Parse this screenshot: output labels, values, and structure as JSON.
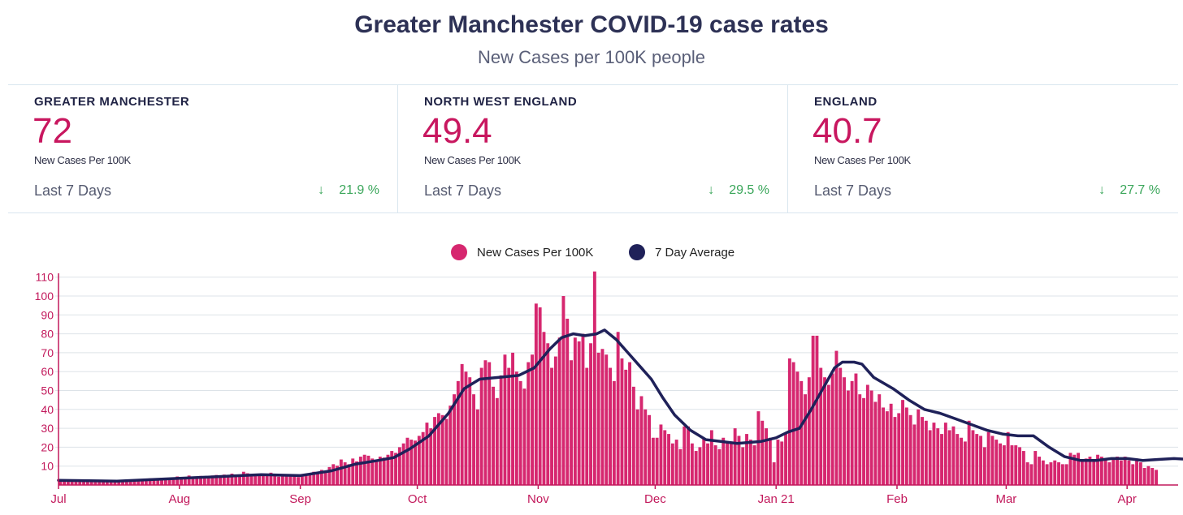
{
  "header": {
    "title": "Greater Manchester COVID-19 case rates",
    "subtitle": "New Cases per 100K people"
  },
  "stats": [
    {
      "region": "GREATER MANCHESTER",
      "value": "72",
      "unit": "New Cases Per 100K",
      "period": "Last 7 Days",
      "change": "21.9 %"
    },
    {
      "region": "NORTH WEST ENGLAND",
      "value": "49.4",
      "unit": "New Cases Per 100K",
      "period": "Last 7 Days",
      "change": "29.5 %"
    },
    {
      "region": "ENGLAND",
      "value": "40.7",
      "unit": "New Cases Per 100K",
      "period": "Last 7 Days",
      "change": "27.7 %"
    }
  ],
  "colors": {
    "bars": "#d6276f",
    "average": "#1f2159",
    "axis": "#c2185b",
    "grid": "#dde3e8",
    "down": "#3aa65a"
  },
  "chart_data": {
    "type": "bar",
    "legend": {
      "placement": "top-center",
      "items": [
        "New Cases Per 100K",
        "7 Day Average"
      ]
    },
    "x_labels": [
      "Jul",
      "Aug",
      "Sep",
      "Oct",
      "Nov",
      "Dec",
      "Jan 21",
      "Feb",
      "Mar",
      "Apr"
    ],
    "x_label_day_index": [
      0,
      31,
      62,
      92,
      123,
      153,
      184,
      215,
      243,
      274
    ],
    "y_ticks": [
      10,
      20,
      30,
      40,
      50,
      60,
      70,
      80,
      90,
      100,
      110
    ],
    "ylim": [
      0,
      112
    ],
    "grid": true,
    "series": [
      {
        "name": "New Cases Per 100K",
        "kind": "bar",
        "start": "2020-07-01",
        "step": "1 day",
        "values": [
          2.5,
          2.3,
          2.0,
          2.4,
          2.2,
          1.8,
          2.6,
          2.1,
          2.4,
          2.2,
          2.0,
          1.9,
          2.3,
          2.5,
          2.1,
          2.0,
          1.8,
          2.2,
          2.4,
          2.1,
          2.3,
          2.6,
          2.8,
          3.5,
          2.9,
          3.1,
          3.8,
          3.3,
          3.0,
          4.0,
          4.5,
          4.0,
          3.8,
          5.0,
          4.2,
          4.5,
          4.8,
          3.9,
          4.6,
          5.0,
          5.3,
          4.7,
          5.5,
          4.9,
          6.0,
          5.1,
          5.6,
          7.0,
          6.2,
          5.4,
          5.5,
          6.0,
          5.3,
          4.8,
          6.5,
          5.1,
          4.4,
          4.8,
          5.3,
          4.6,
          5.0,
          4.2,
          4.5,
          6.0,
          5.5,
          7.0,
          6.2,
          8.0,
          7.1,
          9.5,
          11.0,
          10.2,
          13.5,
          12.0,
          11.0,
          14.0,
          12.5,
          15.0,
          16.0,
          15.5,
          14.0,
          13.0,
          15.0,
          14.5,
          16.0,
          18.0,
          17.0,
          20.0,
          22.0,
          25.0,
          24.0,
          23.5,
          26.0,
          28.0,
          33.0,
          30.0,
          36.0,
          38.0,
          37.0,
          35.0,
          42.0,
          48.0,
          55.0,
          64.0,
          60.0,
          57.0,
          48.0,
          40.0,
          62.0,
          66.0,
          65.0,
          52.0,
          46.0,
          58.0,
          69.0,
          62.0,
          70.0,
          60.0,
          55.0,
          51.0,
          65.0,
          69.0,
          96.0,
          94.0,
          81.0,
          75.0,
          62.0,
          68.0,
          78.0,
          100.0,
          88.0,
          66.0,
          78.0,
          76.0,
          80.0,
          62.0,
          75.0,
          113.0,
          70.0,
          72.0,
          69.0,
          62.0,
          55.0,
          81.0,
          67.0,
          61.0,
          65.0,
          52.0,
          40.0,
          47.0,
          40.0,
          37.0,
          25.0,
          25.0,
          32.0,
          29.0,
          27.0,
          22.0,
          24.0,
          19.0,
          31.0,
          31.0,
          22.0,
          18.0,
          20.0,
          25.0,
          22.0,
          29.0,
          21.0,
          19.0,
          25.0,
          23.0,
          23.0,
          30.0,
          26.0,
          20.0,
          27.0,
          24.0,
          21.0,
          39.0,
          34.0,
          30.0,
          25.0,
          12.0,
          24.0,
          23.0,
          27.0,
          67.0,
          65.0,
          60.0,
          55.0,
          48.0,
          57.0,
          79.0,
          79.0,
          62.0,
          57.0,
          53.0,
          59.0,
          71.0,
          62.0,
          57.0,
          50.0,
          55.0,
          59.0,
          48.0,
          46.0,
          53.0,
          50.0,
          44.0,
          48.0,
          41.0,
          39.0,
          43.0,
          36.0,
          38.0,
          45.0,
          41.0,
          37.0,
          32.0,
          40.0,
          36.0,
          34.0,
          29.0,
          33.0,
          30.0,
          27.0,
          33.0,
          29.0,
          31.0,
          27.0,
          25.0,
          23.0,
          34.0,
          29.0,
          27.0,
          26.0,
          20.0,
          28.0,
          26.0,
          24.0,
          22.0,
          21.0,
          28.0,
          21.0,
          21.0,
          20.0,
          18.0,
          12.0,
          11.0,
          18.0,
          15.0,
          13.0,
          11.0,
          12.0,
          13.0,
          12.0,
          11.0,
          11.0,
          17.0,
          16.0,
          17.0,
          13.0,
          14.0,
          15.0,
          13.0,
          16.0,
          15.0,
          14.0,
          12.0,
          14.0,
          15.0,
          13.0,
          15.0,
          13.0,
          11.0,
          14.0,
          12.0,
          9.0,
          10.0,
          9.0,
          8.0
        ]
      },
      {
        "name": "7 Day Average",
        "kind": "line",
        "start": "2020-07-01",
        "step": "1 day",
        "points": [
          [
            0,
            2.5
          ],
          [
            15,
            2.0
          ],
          [
            31,
            3.5
          ],
          [
            45,
            4.8
          ],
          [
            52,
            5.5
          ],
          [
            62,
            5.0
          ],
          [
            70,
            7.5
          ],
          [
            76,
            11.0
          ],
          [
            82,
            13.0
          ],
          [
            86,
            14.5
          ],
          [
            90,
            19.0
          ],
          [
            95,
            26.0
          ],
          [
            100,
            38.0
          ],
          [
            104,
            51.0
          ],
          [
            108,
            56.0
          ],
          [
            113,
            57.0
          ],
          [
            118,
            58.0
          ],
          [
            122,
            62.0
          ],
          [
            126,
            72.0
          ],
          [
            129,
            78.0
          ],
          [
            132,
            80.0
          ],
          [
            135,
            79.0
          ],
          [
            138,
            80.0
          ],
          [
            140,
            82.0
          ],
          [
            143,
            77.0
          ],
          [
            146,
            70.0
          ],
          [
            149,
            63.0
          ],
          [
            152,
            56.0
          ],
          [
            155,
            46.0
          ],
          [
            158,
            37.0
          ],
          [
            162,
            29.0
          ],
          [
            166,
            24.0
          ],
          [
            170,
            23.0
          ],
          [
            174,
            22.0
          ],
          [
            180,
            23.0
          ],
          [
            184,
            25.0
          ],
          [
            187,
            28.0
          ],
          [
            190,
            30.0
          ],
          [
            193,
            40.0
          ],
          [
            196,
            51.0
          ],
          [
            199,
            62.0
          ],
          [
            201,
            65.0
          ],
          [
            203,
            65.0
          ],
          [
            204,
            65.0
          ],
          [
            206,
            64.0
          ],
          [
            209,
            57.0
          ],
          [
            214,
            51.0
          ],
          [
            218,
            45.0
          ],
          [
            222,
            40.0
          ],
          [
            226,
            38.0
          ],
          [
            230,
            35.0
          ],
          [
            234,
            32.0
          ],
          [
            238,
            29.0
          ],
          [
            242,
            27.0
          ],
          [
            246,
            26.0
          ],
          [
            250,
            26.0
          ],
          [
            254,
            20.0
          ],
          [
            258,
            15.0
          ],
          [
            262,
            13.0
          ],
          [
            266,
            13.0
          ],
          [
            270,
            14.0
          ],
          [
            274,
            14.0
          ],
          [
            278,
            13.0
          ],
          [
            282,
            13.5
          ],
          [
            286,
            14.0
          ],
          [
            290,
            13.5
          ],
          [
            293,
            12.0
          ],
          [
            295,
            11.0
          ]
        ]
      }
    ]
  }
}
